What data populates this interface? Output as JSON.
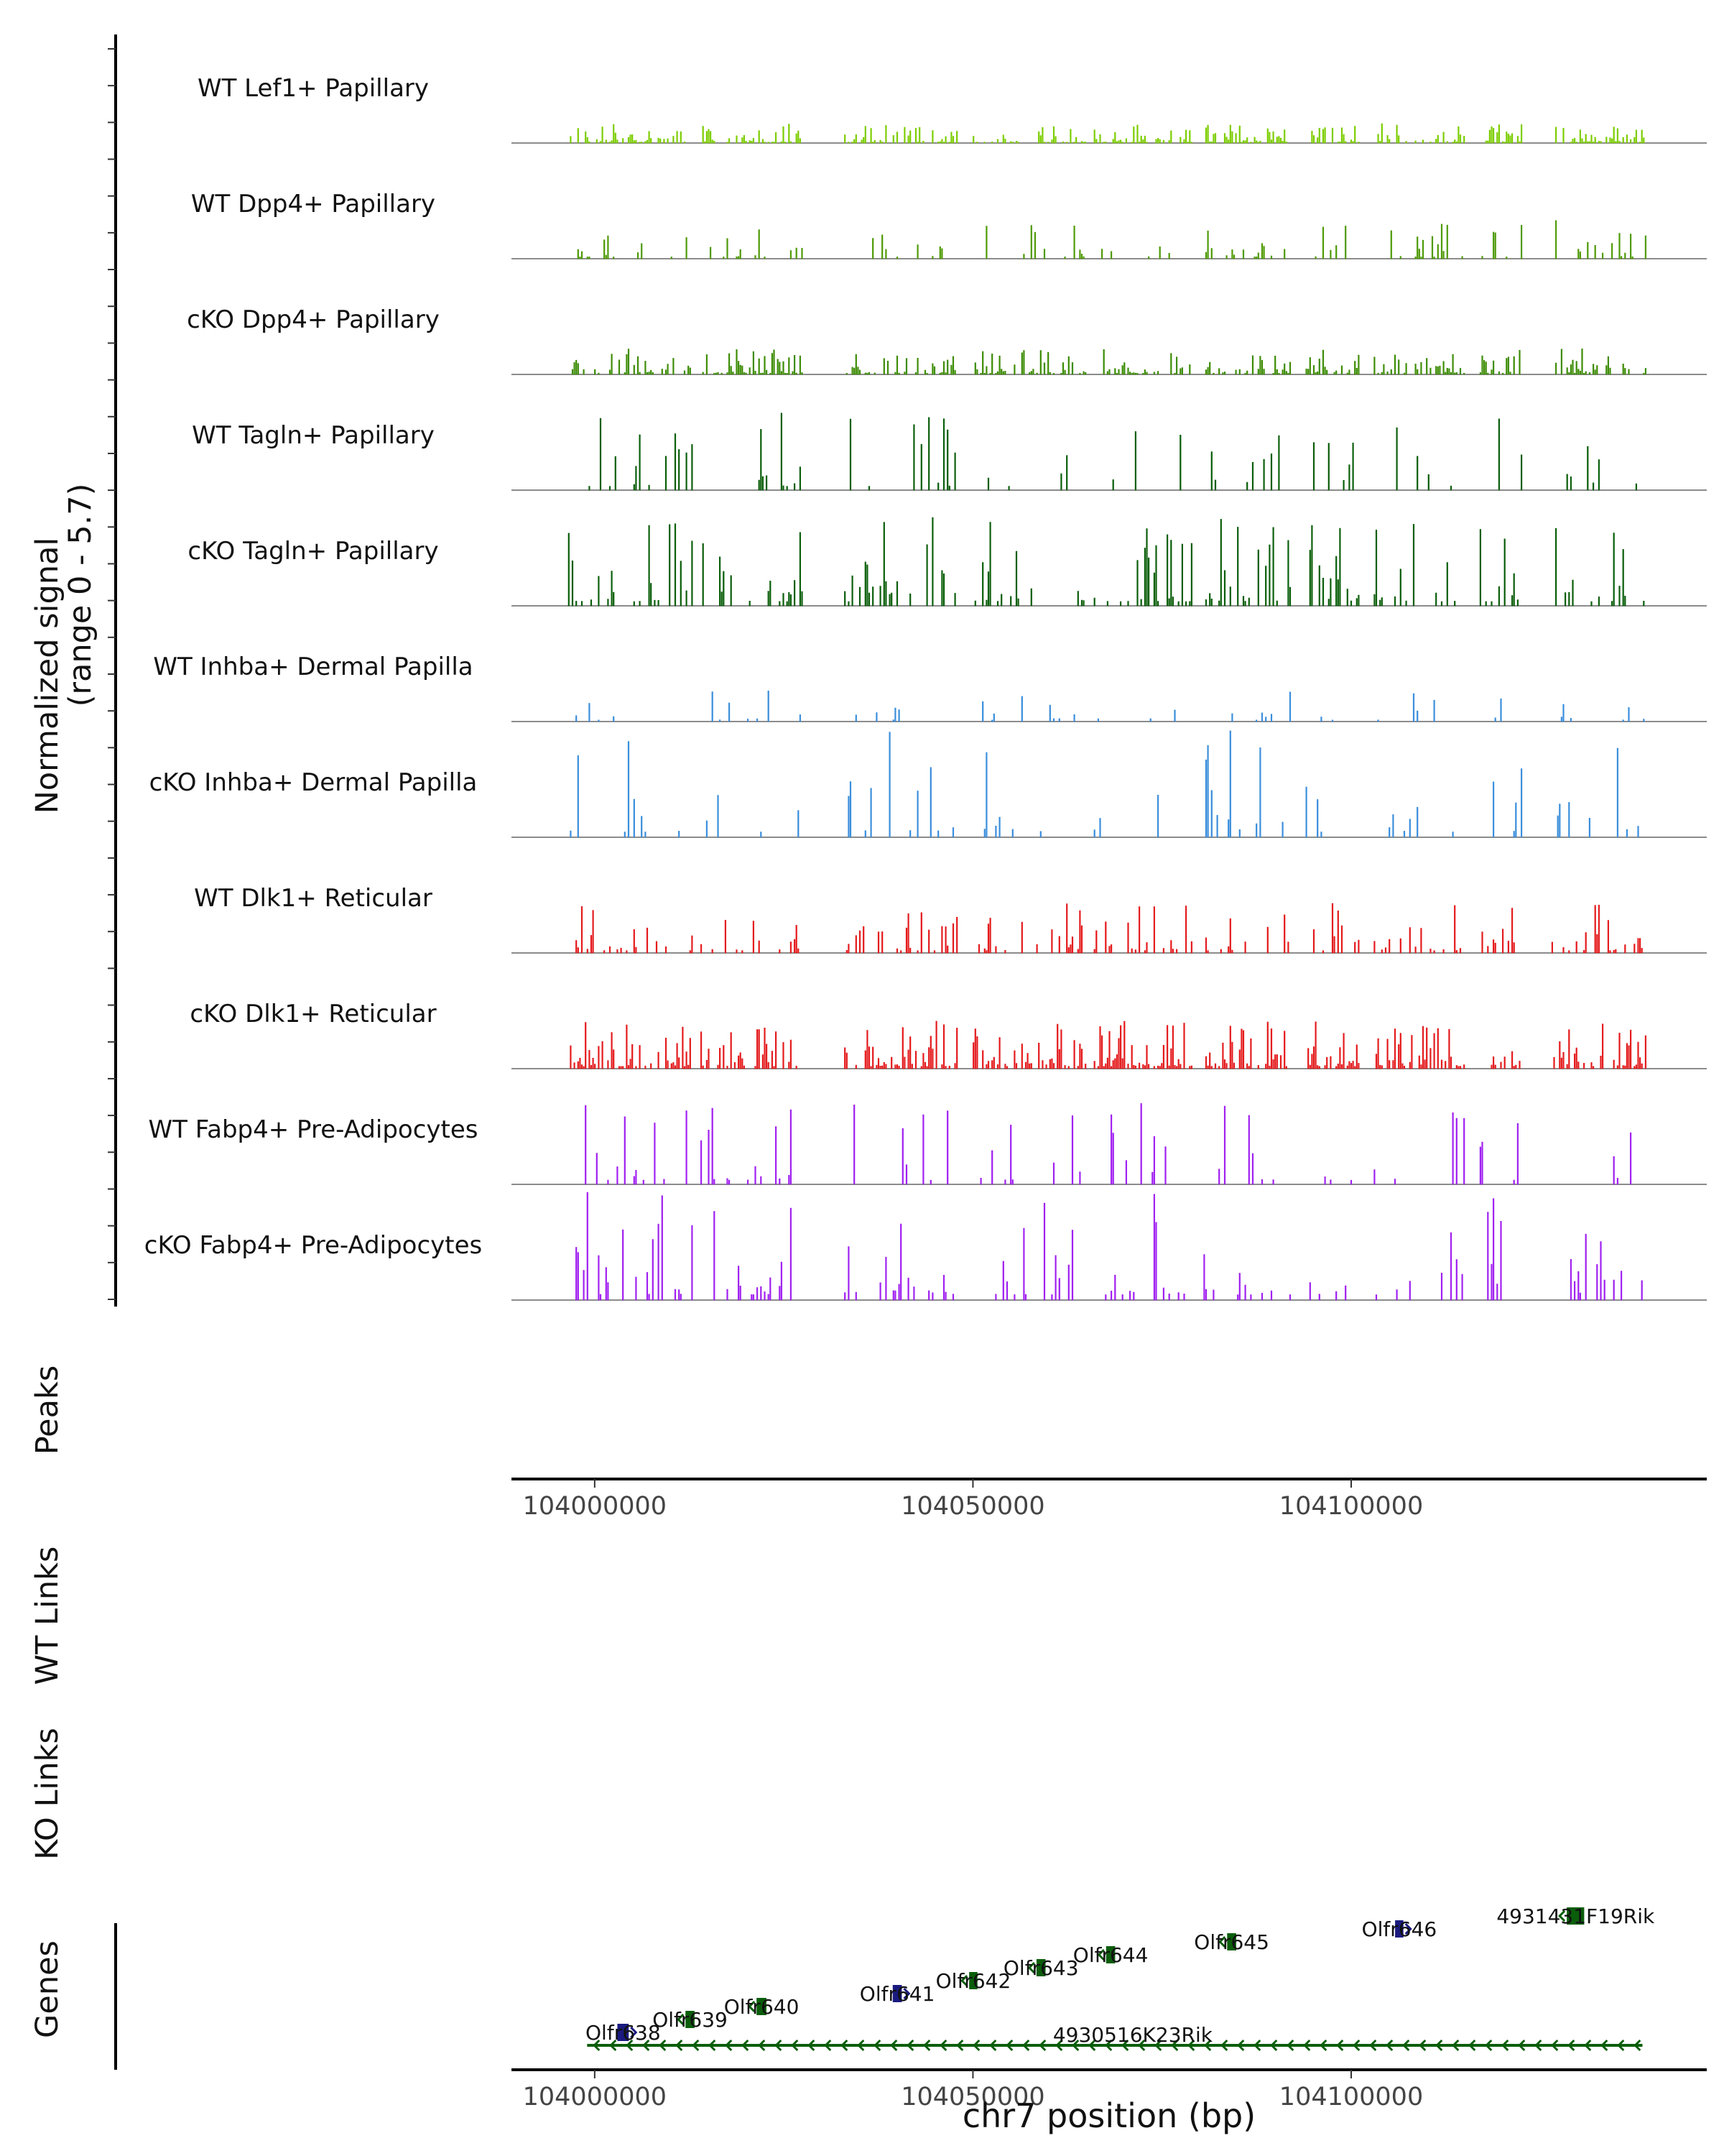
{
  "chart_data": {
    "type": "coverage-track",
    "ylabel": "Normalized signal",
    "ylabel_range": "(range 0 - 5.7)",
    "y_range": [
      0,
      5.7
    ],
    "x_range": [
      103989000,
      104147000
    ],
    "x_ticks": [
      104000000,
      104050000,
      104100000
    ],
    "x_tick_labels": [
      "104000000",
      "104050000",
      "104100000"
    ],
    "xlabel": "chr7 position (bp)",
    "peaks_label": "Peaks",
    "wt_links_label": "WT Links",
    "ko_links_label": "KO Links",
    "genes_label": "Genes",
    "tracks": [
      {
        "name": "WT Lef1+ Papillary",
        "color": "#7CCD00",
        "max": 1.0,
        "density": 0.55
      },
      {
        "name": "WT Dpp4+ Papillary",
        "color": "#4E9A06",
        "max": 2.0,
        "density": 0.18
      },
      {
        "name": "cKO Dpp4+ Papillary",
        "color": "#3C8C05",
        "max": 1.3,
        "density": 0.55
      },
      {
        "name": "WT Tagln+ Papillary",
        "color": "#0A5E0A",
        "max": 4.0,
        "density": 0.12
      },
      {
        "name": "cKO Tagln+ Papillary",
        "color": "#0A5E0A",
        "max": 4.5,
        "density": 0.3
      },
      {
        "name": "WT Inhba+ Dermal Papilla",
        "color": "#3A8EDB",
        "max": 1.6,
        "density": 0.1
      },
      {
        "name": "cKO Inhba+ Dermal Papilla",
        "color": "#3A8EDB",
        "max": 5.7,
        "density": 0.1
      },
      {
        "name": "WT Dlk1+ Reticular",
        "color": "#E41A1C",
        "max": 2.5,
        "density": 0.3
      },
      {
        "name": "cKO Dlk1+ Reticular",
        "color": "#E41A1C",
        "max": 2.4,
        "density": 0.6
      },
      {
        "name": "WT Fabp4+ Pre-Adipocytes",
        "color": "#A020F0",
        "max": 4.4,
        "density": 0.12
      },
      {
        "name": "cKO Fabp4+ Pre-Adipocytes",
        "color": "#A020F0",
        "max": 5.7,
        "density": 0.2
      }
    ],
    "signal_regions": [
      [
        103996500,
        104013000
      ],
      [
        104014000,
        104027500
      ],
      [
        104033000,
        104048000
      ],
      [
        104050000,
        104065000
      ],
      [
        104066000,
        104079000
      ],
      [
        104080500,
        104092000
      ],
      [
        104094000,
        104101000
      ],
      [
        104103000,
        104115000
      ],
      [
        104117000,
        104122500
      ],
      [
        104126500,
        104139000
      ]
    ],
    "genes": [
      {
        "name": "Olfr638",
        "start": 104003000,
        "end": 104004500,
        "strand": "+",
        "color": "#1A1A80",
        "level": 0
      },
      {
        "name": "Olfr639",
        "start": 104012000,
        "end": 104013200,
        "strand": "-",
        "color": "#0A5E0A",
        "level": 1
      },
      {
        "name": "Olfr640",
        "start": 104021400,
        "end": 104022700,
        "strand": "-",
        "color": "#0A5E0A",
        "level": 2
      },
      {
        "name": "Olfr641",
        "start": 104039400,
        "end": 104040600,
        "strand": "+",
        "color": "#1A1A80",
        "level": 3
      },
      {
        "name": "Olfr642",
        "start": 104049500,
        "end": 104050600,
        "strand": "-",
        "color": "#0A5E0A",
        "level": 4
      },
      {
        "name": "Olfr643",
        "start": 104058400,
        "end": 104059600,
        "strand": "-",
        "color": "#0A5E0A",
        "level": 5
      },
      {
        "name": "Olfr644",
        "start": 104067600,
        "end": 104068800,
        "strand": "-",
        "color": "#0A5E0A",
        "level": 6
      },
      {
        "name": "Olfr645",
        "start": 104083600,
        "end": 104084800,
        "strand": "-",
        "color": "#0A5E0A",
        "level": 7
      },
      {
        "name": "Olfr646",
        "start": 104105800,
        "end": 104106900,
        "strand": "+",
        "color": "#1A1A80",
        "level": 8
      },
      {
        "name": "4931431F19Rik",
        "start": 104128500,
        "end": 104130800,
        "strand": "-",
        "color": "#0A5E0A",
        "level": 9
      },
      {
        "name": "4930516K23Rik",
        "start": 103999000,
        "end": 104138500,
        "strand": "-",
        "color": "#0A5E0A",
        "level": -1
      }
    ]
  }
}
